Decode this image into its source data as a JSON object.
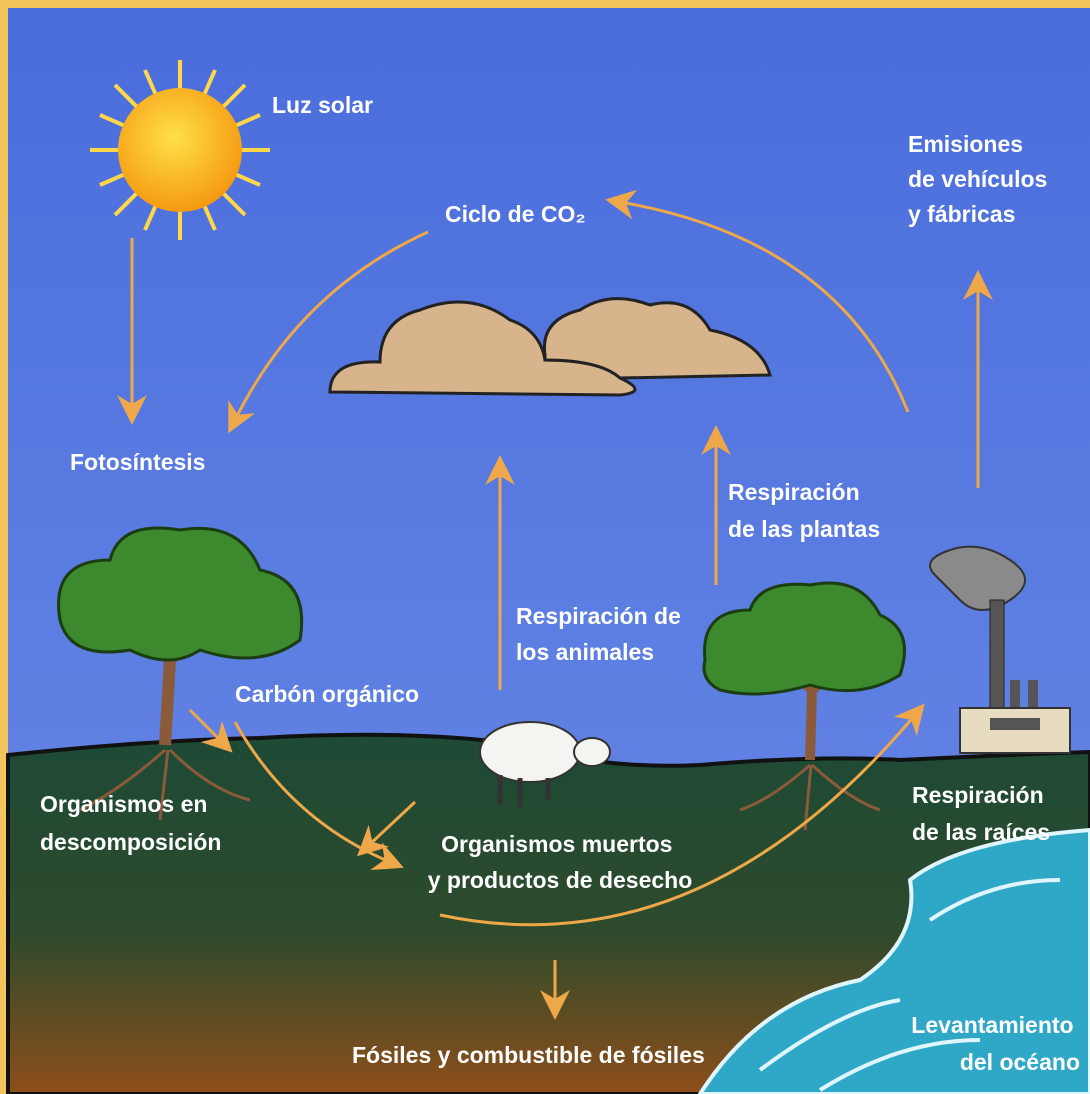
{
  "diagram": {
    "sun_label": "Luz solar",
    "emissions": [
      "Emisiones",
      "de vehículos",
      "y fábricas"
    ],
    "cycle_title": "Ciclo de CO₂",
    "photosynthesis": "Fotosíntesis",
    "plant_respiration": [
      "Respiración",
      "de las plantas"
    ],
    "animal_respiration": [
      "Respiración de",
      "los animales"
    ],
    "organic_carbon": "Carbón orgánico",
    "decomposition": [
      "Organismos en",
      "descomposición"
    ],
    "dead_organisms": [
      "Organismos muertos",
      "y productos de desecho"
    ],
    "root_respiration": [
      "Respiración",
      "de las raíces"
    ],
    "fossils": "Fósiles y combustible de fósiles",
    "ocean_uplift": [
      "Levantamiento",
      "del océano"
    ]
  }
}
